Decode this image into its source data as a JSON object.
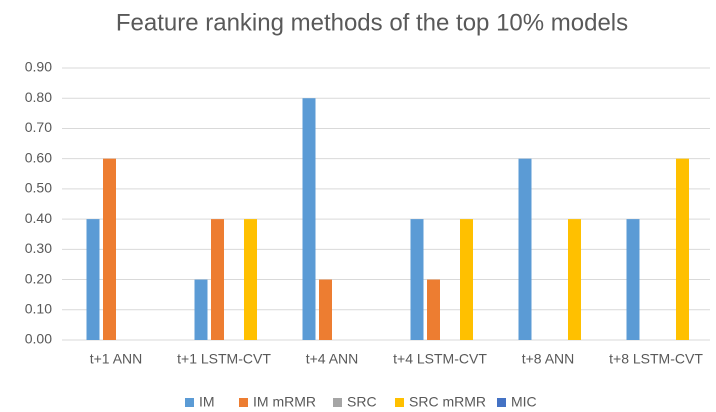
{
  "chart_data": {
    "type": "bar",
    "title": "Feature ranking methods of the top 10% models",
    "categories": [
      "t+1 ANN",
      "t+1 LSTM-CVT",
      "t+4 ANN",
      "t+4 LSTM-CVT",
      "t+8 ANN",
      "t+8 LSTM-CVT"
    ],
    "series": [
      {
        "name": "IM",
        "color": "#5b9bd5",
        "values": [
          0.4,
          0.2,
          0.8,
          0.4,
          0.6,
          0.4
        ]
      },
      {
        "name": "IM mRMR",
        "color": "#ed7d31",
        "values": [
          0.6,
          0.4,
          0.2,
          0.2,
          0,
          0
        ]
      },
      {
        "name": "SRC",
        "color": "#a5a5a5",
        "values": [
          0,
          0,
          0,
          0,
          0,
          0
        ]
      },
      {
        "name": "SRC mRMR",
        "color": "#ffc000",
        "values": [
          0,
          0.4,
          0,
          0.4,
          0.4,
          0.6
        ]
      },
      {
        "name": "MIC",
        "color": "#4472c4",
        "values": [
          0,
          0,
          0,
          0,
          0,
          0
        ]
      }
    ],
    "ylim": [
      0,
      0.9
    ],
    "yticks": [
      {
        "value": 0,
        "label": "0.00"
      },
      {
        "value": 0.1,
        "label": "0.10"
      },
      {
        "value": 0.2,
        "label": "0.20"
      },
      {
        "value": 0.3,
        "label": "0.30"
      },
      {
        "value": 0.4,
        "label": "0.40"
      },
      {
        "value": 0.5,
        "label": "0.50"
      },
      {
        "value": 0.6,
        "label": "0.60"
      },
      {
        "value": 0.7,
        "label": "0.70"
      },
      {
        "value": 0.8,
        "label": "0.80"
      },
      {
        "value": 0.9,
        "label": "0.90"
      }
    ],
    "grid": true,
    "legend": "bottom"
  }
}
